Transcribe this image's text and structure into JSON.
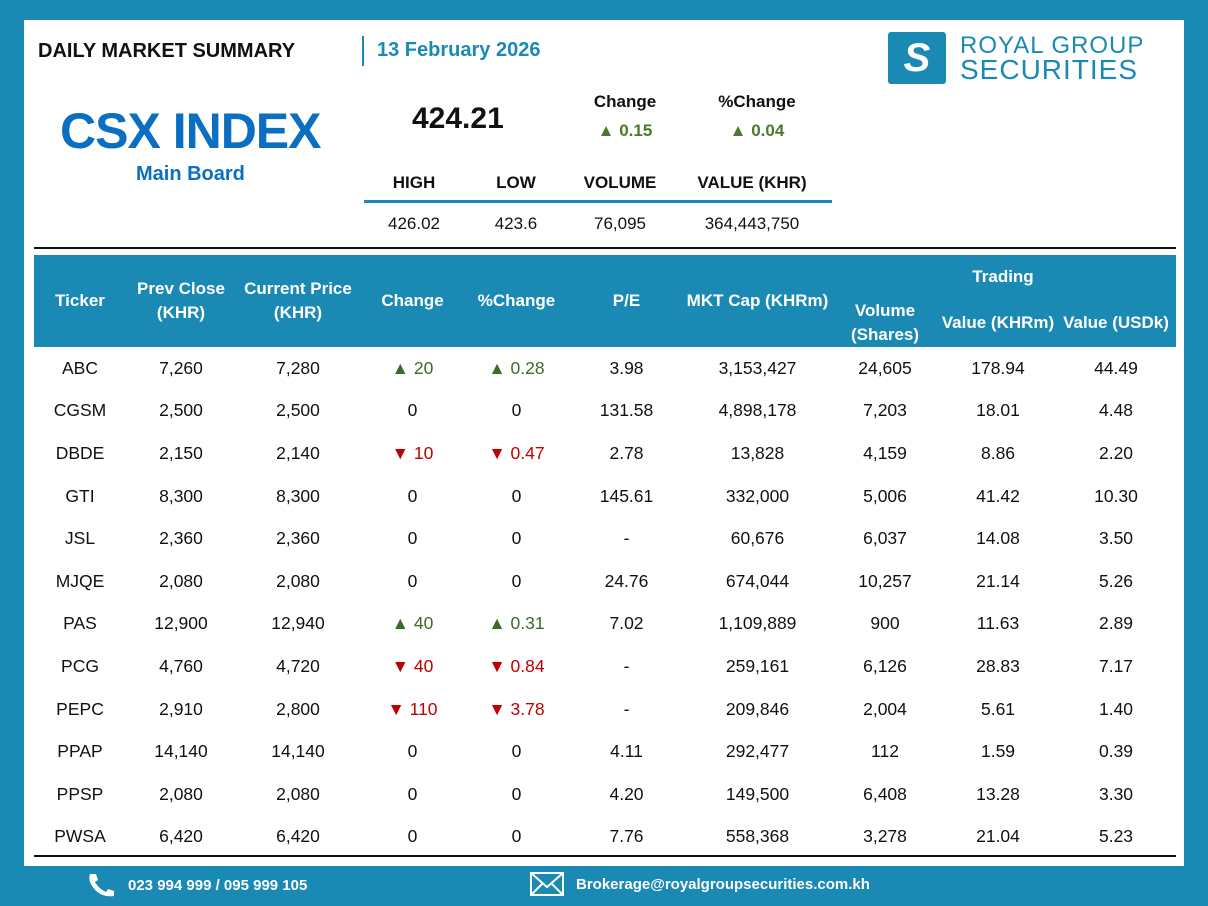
{
  "header": {
    "title": "DAILY MARKET SUMMARY",
    "date": "13 February 2026",
    "logo_line1": "ROYAL GROUP",
    "logo_line2": "SECURITIES"
  },
  "index": {
    "name": "CSX INDEX",
    "board": "Main Board",
    "value": "424.21",
    "change_label": "Change",
    "change": "▲ 0.15",
    "pct_change_label": "%Change",
    "pct_change": "▲ 0.04",
    "stats_headers": [
      "HIGH",
      "LOW",
      "VOLUME",
      "VALUE (KHR)"
    ],
    "stats_values": [
      "426.02",
      "423.6",
      "76,095",
      "364,443,750"
    ]
  },
  "table": {
    "headers": {
      "ticker": "Ticker",
      "prev": "Prev Close (KHR)",
      "current": "Current Price (KHR)",
      "change": "Change",
      "pct": "%Change",
      "pe": "P/E",
      "mktcap": "MKT Cap (KHRm)",
      "trading": "Trading",
      "volume": "Volume (Shares)",
      "value_khr": "Value (KHRm)",
      "value_usd": "Value (USDk)"
    },
    "rows": [
      {
        "ticker": "ABC",
        "prev": "7,260",
        "current": "7,280",
        "change": "▲ 20",
        "pct": "▲ 0.28",
        "dir": "up",
        "pe": "3.98",
        "mktcap": "3,153,427",
        "volume": "24,605",
        "value_khr": "178.94",
        "value_usd": "44.49"
      },
      {
        "ticker": "CGSM",
        "prev": "2,500",
        "current": "2,500",
        "change": "0",
        "pct": "0",
        "dir": "flat",
        "pe": "131.58",
        "mktcap": "4,898,178",
        "volume": "7,203",
        "value_khr": "18.01",
        "value_usd": "4.48"
      },
      {
        "ticker": "DBDE",
        "prev": "2,150",
        "current": "2,140",
        "change": "▼ 10",
        "pct": "▼ 0.47",
        "dir": "down",
        "pe": "2.78",
        "mktcap": "13,828",
        "volume": "4,159",
        "value_khr": "8.86",
        "value_usd": "2.20"
      },
      {
        "ticker": "GTI",
        "prev": "8,300",
        "current": "8,300",
        "change": "0",
        "pct": "0",
        "dir": "flat",
        "pe": "145.61",
        "mktcap": "332,000",
        "volume": "5,006",
        "value_khr": "41.42",
        "value_usd": "10.30"
      },
      {
        "ticker": "JSL",
        "prev": "2,360",
        "current": "2,360",
        "change": "0",
        "pct": "0",
        "dir": "flat",
        "pe": "-",
        "mktcap": "60,676",
        "volume": "6,037",
        "value_khr": "14.08",
        "value_usd": "3.50"
      },
      {
        "ticker": "MJQE",
        "prev": "2,080",
        "current": "2,080",
        "change": "0",
        "pct": "0",
        "dir": "flat",
        "pe": "24.76",
        "mktcap": "674,044",
        "volume": "10,257",
        "value_khr": "21.14",
        "value_usd": "5.26"
      },
      {
        "ticker": "PAS",
        "prev": "12,900",
        "current": "12,940",
        "change": "▲ 40",
        "pct": "▲ 0.31",
        "dir": "up",
        "pe": "7.02",
        "mktcap": "1,109,889",
        "volume": "900",
        "value_khr": "11.63",
        "value_usd": "2.89"
      },
      {
        "ticker": "PCG",
        "prev": "4,760",
        "current": "4,720",
        "change": "▼ 40",
        "pct": "▼ 0.84",
        "dir": "down",
        "pe": "-",
        "mktcap": "259,161",
        "volume": "6,126",
        "value_khr": "28.83",
        "value_usd": "7.17"
      },
      {
        "ticker": "PEPC",
        "prev": "2,910",
        "current": "2,800",
        "change": "▼ 110",
        "pct": "▼ 3.78",
        "dir": "down",
        "pe": "-",
        "mktcap": "209,846",
        "volume": "2,004",
        "value_khr": "5.61",
        "value_usd": "1.40"
      },
      {
        "ticker": "PPAP",
        "prev": "14,140",
        "current": "14,140",
        "change": "0",
        "pct": "0",
        "dir": "flat",
        "pe": "4.11",
        "mktcap": "292,477",
        "volume": "112",
        "value_khr": "1.59",
        "value_usd": "0.39"
      },
      {
        "ticker": "PPSP",
        "prev": "2,080",
        "current": "2,080",
        "change": "0",
        "pct": "0",
        "dir": "flat",
        "pe": "4.20",
        "mktcap": "149,500",
        "volume": "6,408",
        "value_khr": "13.28",
        "value_usd": "3.30"
      },
      {
        "ticker": "PWSA",
        "prev": "6,420",
        "current": "6,420",
        "change": "0",
        "pct": "0",
        "dir": "flat",
        "pe": "7.76",
        "mktcap": "558,368",
        "volume": "3,278",
        "value_khr": "21.04",
        "value_usd": "5.23"
      }
    ]
  },
  "footer": {
    "phone": "023 994 999 / 095 999 105",
    "email": "Brokerage@royalgroupsecurities.com.kh"
  }
}
